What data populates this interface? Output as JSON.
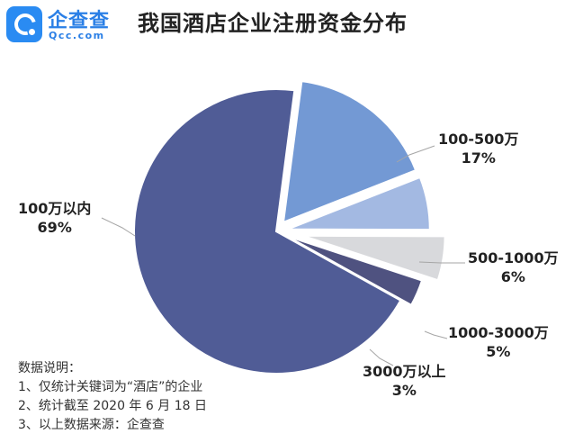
{
  "brand": {
    "name": "企查查",
    "domain": "Qcc.com",
    "accent": "#2a8bf2"
  },
  "chart_data": {
    "type": "pie",
    "title": "我国酒店企业注册资金分布",
    "slices": [
      {
        "name": "100万以内",
        "value": 69,
        "label": "69%",
        "color": "#505c96"
      },
      {
        "name": "100-500万",
        "value": 17,
        "label": "17%",
        "color": "#7399d4"
      },
      {
        "name": "500-1000万",
        "value": 6,
        "label": "6%",
        "color": "#a3b9e2"
      },
      {
        "name": "1000-3000万",
        "value": 5,
        "label": "5%",
        "color": "#d8d9dc"
      },
      {
        "name": "3000万以上",
        "value": 3,
        "label": "3%",
        "color": "#4f5280"
      }
    ]
  },
  "notes": {
    "heading": "数据说明：",
    "items": [
      "1、仅统计关键词为“酒店”的企业",
      "2、统计截至 2020 年 6 月 18 日",
      "3、以上数据来源：企查查"
    ]
  }
}
